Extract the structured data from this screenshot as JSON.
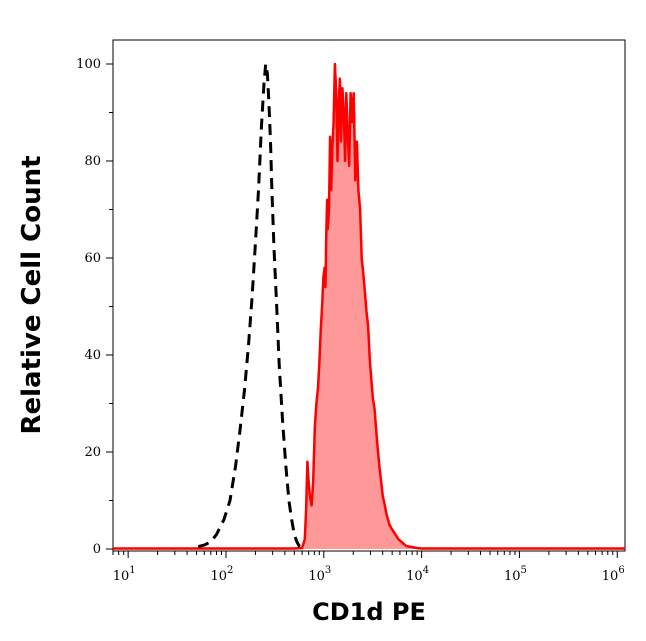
{
  "chart_data": {
    "type": "area",
    "title": "",
    "xlabel": "CD1d PE",
    "ylabel": "Relative Cell Count",
    "xscale": "log",
    "xlim": [
      7,
      1200000
    ],
    "ylim": [
      0,
      105
    ],
    "grid": false,
    "legend": "none",
    "x_ticks": [
      {
        "base": "10",
        "exp": "1",
        "value": 10
      },
      {
        "base": "10",
        "exp": "2",
        "value": 100
      },
      {
        "base": "10",
        "exp": "3",
        "value": 1000
      },
      {
        "base": "10",
        "exp": "4",
        "value": 10000
      },
      {
        "base": "10",
        "exp": "5",
        "value": 100000
      },
      {
        "base": "10",
        "exp": "6",
        "value": 1000000
      }
    ],
    "y_ticks": [
      "0",
      "20",
      "40",
      "60",
      "80",
      "100"
    ],
    "series": [
      {
        "style": "dashed",
        "color": "#000000",
        "fill": "none",
        "x": [
          52,
          60,
          70,
          80,
          95,
          110,
          125,
          140,
          155,
          170,
          185,
          200,
          215,
          230,
          245,
          255,
          265,
          275,
          285,
          295,
          310,
          330,
          350,
          380,
          410,
          440,
          470,
          500,
          530,
          560,
          590,
          620
        ],
        "y": [
          0.5,
          0.8,
          1.5,
          3,
          6,
          10,
          17,
          25,
          33,
          42,
          52,
          63,
          74,
          87,
          96,
          100,
          98,
          92,
          84,
          74,
          62,
          50,
          38,
          26,
          17,
          10,
          6,
          3,
          1.5,
          0.6,
          0.2,
          0
        ]
      },
      {
        "style": "solid",
        "color": "#ff0000",
        "fill": "#ff9999",
        "x": [
          7,
          100,
          500,
          600,
          640,
          660,
          680,
          700,
          720,
          750,
          780,
          810,
          840,
          870,
          900,
          930,
          960,
          990,
          1020,
          1040,
          1060,
          1080,
          1100,
          1130,
          1160,
          1190,
          1220,
          1260,
          1300,
          1340,
          1380,
          1420,
          1460,
          1500,
          1550,
          1600,
          1650,
          1700,
          1760,
          1820,
          1880,
          1950,
          2020,
          2100,
          2180,
          2260,
          2350,
          2440,
          2530,
          2630,
          2730,
          2840,
          2950,
          3060,
          3180,
          3300,
          3420,
          3550,
          3700,
          3850,
          4000,
          4200,
          4400,
          4700,
          5000,
          5400,
          5800,
          6200,
          6600,
          7000,
          8000,
          9000,
          10000,
          20000,
          100000,
          1200000
        ],
        "y": [
          0.1,
          0.1,
          0.1,
          0.2,
          2,
          8,
          18,
          14,
          11,
          9,
          14,
          25,
          30,
          33,
          38,
          45,
          50,
          56,
          58,
          54,
          65,
          72,
          66,
          70,
          85,
          74,
          82,
          88,
          100,
          94,
          80,
          92,
          97,
          84,
          95,
          90,
          80,
          94,
          85,
          79,
          94,
          88,
          94,
          76,
          84,
          74,
          70,
          60,
          57,
          53,
          49,
          46,
          39,
          35,
          31,
          29,
          25,
          21,
          17,
          14,
          11,
          9,
          7,
          5,
          4,
          3,
          2,
          1.5,
          1,
          0.6,
          0.4,
          0.2,
          0.1,
          0.1,
          0.1,
          0.1
        ]
      }
    ]
  }
}
